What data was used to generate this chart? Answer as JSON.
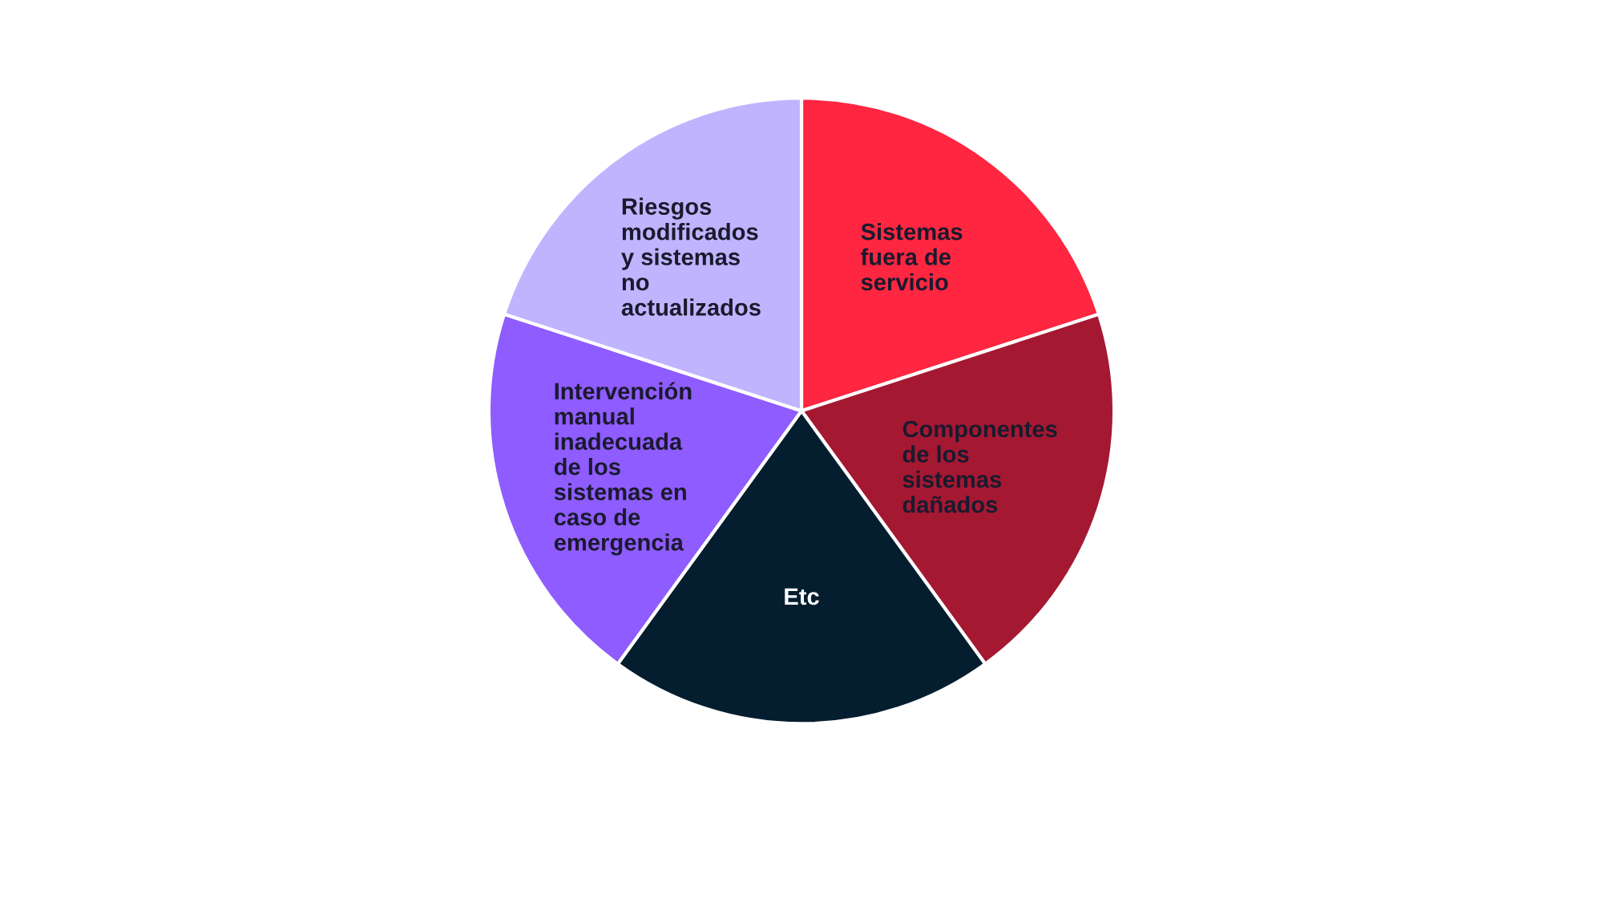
{
  "chart_data": {
    "type": "pie",
    "categories": [
      "Sistemas fuera de servicio",
      "Componentes de los sistemas dañados",
      "Etc",
      "Intervención manual inadecuada de los sistemas en caso de emergencia",
      "Riesgos modificados y sistemas no actualizados"
    ],
    "values": [
      20,
      20,
      20,
      20,
      20
    ],
    "colors": [
      "#fe2640",
      "#a51832",
      "#041e30",
      "#8f5cff",
      "#c0b4fe"
    ],
    "legend": false
  }
}
